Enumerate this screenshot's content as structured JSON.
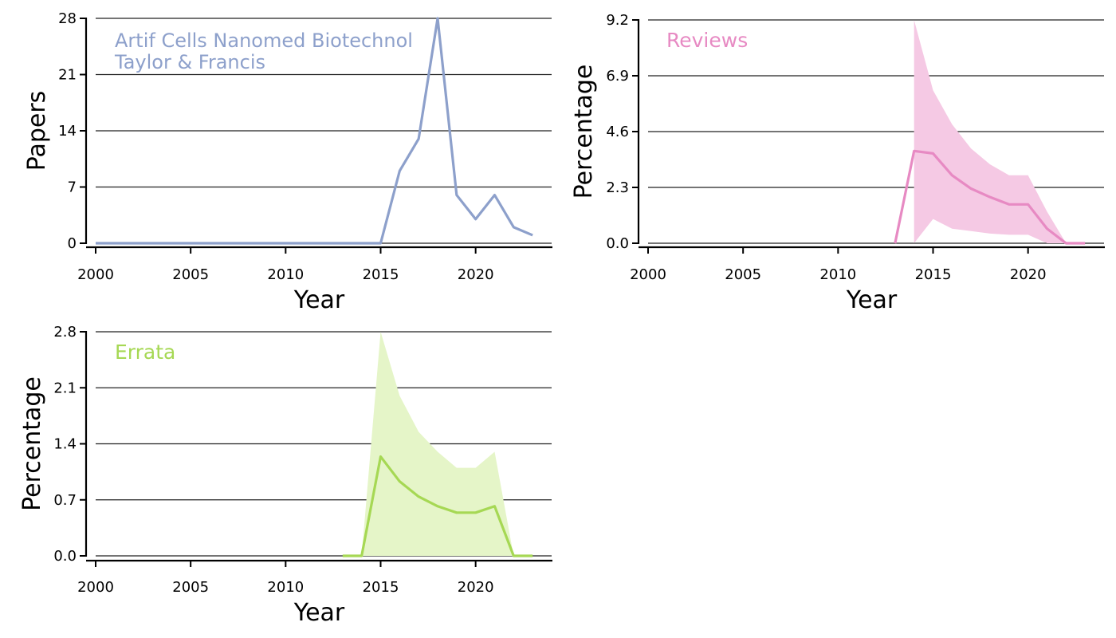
{
  "chart_data": [
    {
      "type": "line",
      "title": "",
      "annotations": [
        "Artif Cells Nanomed Biotechnol",
        "Taylor & Francis"
      ],
      "xlabel": "Year",
      "ylabel": "Papers",
      "xlim": [
        2000,
        2024
      ],
      "ylim": [
        0,
        28
      ],
      "xticks": [
        2000,
        2005,
        2010,
        2015,
        2020
      ],
      "yticks": [
        0,
        7,
        14,
        21,
        28
      ],
      "ytick_labels": [
        "0",
        "7",
        "14",
        "21",
        "28"
      ],
      "grid": "horizontal",
      "color": "#8da0cb",
      "series": [
        {
          "name": "Papers",
          "x": [
            2000,
            2001,
            2002,
            2003,
            2004,
            2005,
            2006,
            2007,
            2008,
            2009,
            2010,
            2011,
            2012,
            2013,
            2014,
            2015,
            2016,
            2017,
            2018,
            2019,
            2020,
            2021,
            2022,
            2023
          ],
          "values": [
            0,
            0,
            0,
            0,
            0,
            0,
            0,
            0,
            0,
            0,
            0,
            0,
            0,
            0,
            0,
            0,
            9,
            13,
            28,
            6,
            3,
            6,
            2,
            1
          ]
        }
      ]
    },
    {
      "type": "line",
      "title": "",
      "annotations": [
        "Reviews"
      ],
      "xlabel": "Year",
      "ylabel": "Percentage",
      "xlim": [
        2000,
        2024
      ],
      "ylim": [
        0,
        9.2
      ],
      "xticks": [
        2000,
        2005,
        2010,
        2015,
        2020
      ],
      "yticks": [
        0,
        2.3,
        4.6,
        6.9,
        9.2
      ],
      "ytick_labels": [
        "0.0",
        "2.3",
        "4.6",
        "6.9",
        "9.2"
      ],
      "grid": "horizontal",
      "color": "#e78ac3",
      "band_color": "#f5c9e4",
      "series": [
        {
          "name": "Reviews",
          "x": [
            2013,
            2014,
            2015,
            2016,
            2017,
            2018,
            2019,
            2020,
            2021,
            2022,
            2023
          ],
          "values": [
            0,
            3.8,
            3.7,
            2.8,
            2.25,
            1.9,
            1.6,
            1.6,
            0.6,
            0,
            0
          ]
        }
      ],
      "band": {
        "x": [
          2014,
          2015,
          2016,
          2017,
          2018,
          2019,
          2020,
          2021,
          2022
        ],
        "lower": [
          0,
          1.0,
          0.6,
          0.5,
          0.4,
          0.35,
          0.35,
          0,
          0
        ],
        "upper": [
          9.2,
          6.3,
          4.9,
          3.9,
          3.25,
          2.8,
          2.8,
          1.3,
          0
        ]
      }
    },
    {
      "type": "line",
      "title": "",
      "annotations": [
        "Errata"
      ],
      "xlabel": "Year",
      "ylabel": "Percentage",
      "xlim": [
        2000,
        2024
      ],
      "ylim": [
        0,
        2.8
      ],
      "xticks": [
        2000,
        2005,
        2010,
        2015,
        2020
      ],
      "yticks": [
        0,
        0.7,
        1.4,
        2.1,
        2.8
      ],
      "ytick_labels": [
        "0.0",
        "0.7",
        "1.4",
        "2.1",
        "2.8"
      ],
      "grid": "horizontal",
      "color": "#a6d854",
      "band_color": "#e5f5c8",
      "series": [
        {
          "name": "Errata",
          "x": [
            2013,
            2014,
            2015,
            2016,
            2017,
            2018,
            2019,
            2020,
            2021,
            2022,
            2023
          ],
          "values": [
            0,
            0,
            1.24,
            0.93,
            0.74,
            0.62,
            0.54,
            0.54,
            0.62,
            0,
            0
          ]
        }
      ],
      "band": {
        "x": [
          2014,
          2015,
          2016,
          2017,
          2018,
          2019,
          2020,
          2021,
          2022
        ],
        "lower": [
          0,
          0,
          0,
          0,
          0,
          0,
          0,
          0,
          0
        ],
        "upper": [
          0,
          2.8,
          2.0,
          1.55,
          1.3,
          1.1,
          1.1,
          1.3,
          0
        ]
      }
    }
  ]
}
